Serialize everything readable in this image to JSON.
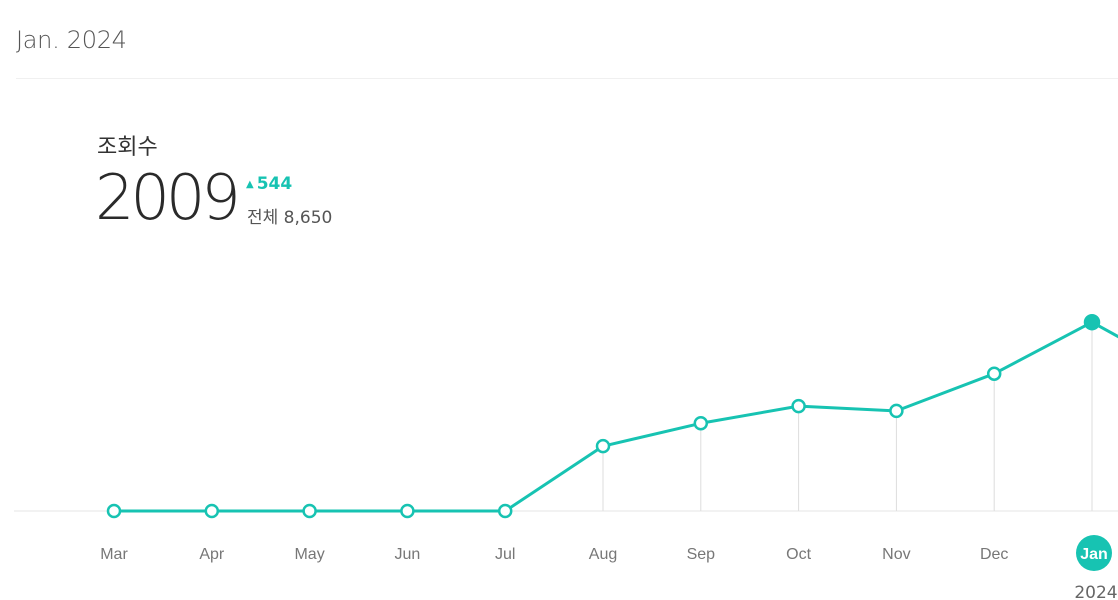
{
  "header": {
    "period": "Jan. 2024"
  },
  "metric": {
    "label": "조회수",
    "value": "2009",
    "change": "544",
    "change_direction": "up-triangle-icon",
    "total": "전체 8,650"
  },
  "colors": {
    "accent": "#17c3b2",
    "grid": "#dddddd",
    "tick": "#777777"
  },
  "chart_data": {
    "type": "line",
    "categories": [
      "Mar",
      "Apr",
      "May",
      "Jun",
      "Jul",
      "Aug",
      "Sep",
      "Oct",
      "Nov",
      "Dec",
      "Jan"
    ],
    "year_label": "2024",
    "selected": "Jan",
    "series": [
      {
        "values": [
          0,
          0,
          0,
          0,
          0,
          340,
          460,
          550,
          525,
          720,
          990
        ]
      }
    ],
    "ylim": [
      0,
      1300
    ],
    "grid": false
  }
}
